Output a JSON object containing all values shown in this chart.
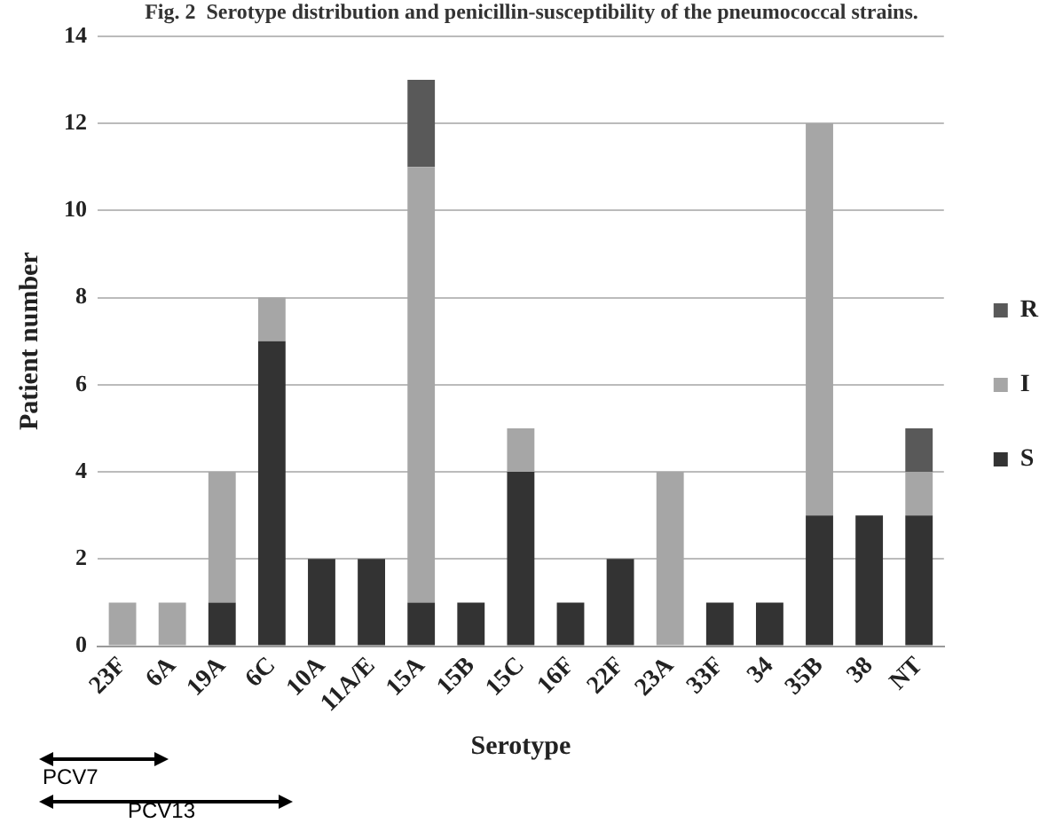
{
  "chart_data": {
    "type": "bar",
    "title": "Fig. 2  Serotype distribution and penicillin-susceptibility of the pneumococcal strains.",
    "xlabel": "Serotype",
    "ylabel": "Patient number",
    "categories": [
      "23F",
      "6A",
      "19A",
      "6C",
      "10A",
      "11A/E",
      "15A",
      "15B",
      "15C",
      "16F",
      "22F",
      "23A",
      "33F",
      "34",
      "35B",
      "38",
      "NT"
    ],
    "stacked": true,
    "series": [
      {
        "name": "S",
        "color": "#333333",
        "values": [
          0,
          0,
          1,
          7,
          2,
          2,
          1,
          1,
          4,
          1,
          2,
          0,
          1,
          1,
          3,
          3,
          3
        ]
      },
      {
        "name": "I",
        "color": "#a6a6a6",
        "values": [
          1,
          1,
          3,
          1,
          0,
          0,
          10,
          0,
          1,
          0,
          0,
          4,
          0,
          0,
          9,
          0,
          1
        ]
      },
      {
        "name": "R",
        "color": "#595959",
        "values": [
          0,
          0,
          0,
          0,
          0,
          0,
          2,
          0,
          0,
          0,
          0,
          0,
          0,
          0,
          0,
          0,
          1
        ]
      }
    ],
    "ylim": [
      0,
      14
    ],
    "yticks": [
      0,
      2,
      4,
      6,
      8,
      10,
      12,
      14
    ],
    "grid": "y",
    "legend": "right",
    "annotations": [
      "PCV7",
      "PCV13"
    ]
  }
}
